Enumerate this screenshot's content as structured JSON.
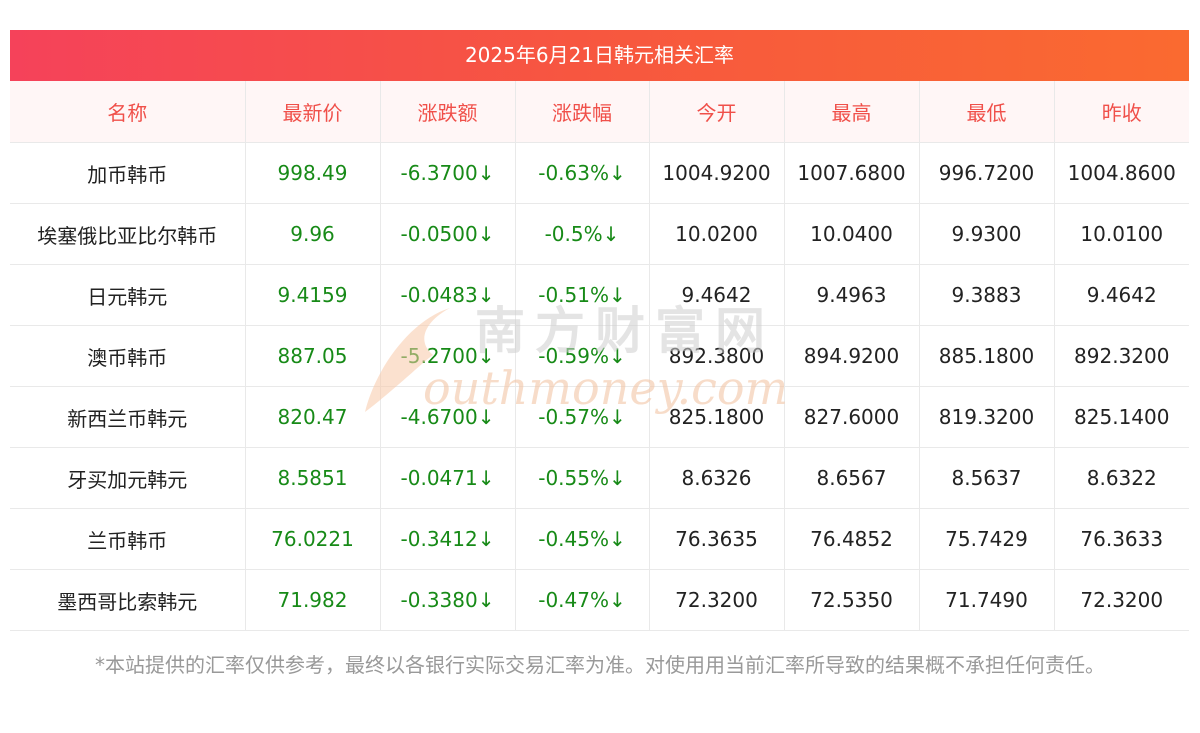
{
  "title": "2025年6月21日韩元相关汇率",
  "headers": [
    "名称",
    "最新价",
    "涨跌额",
    "涨跌幅",
    "今开",
    "最高",
    "最低",
    "昨收"
  ],
  "rows": [
    {
      "name": "加币韩币",
      "latest": "998.49",
      "change": "-6.3700↓",
      "pct": "-0.63%↓",
      "open": "1004.9200",
      "high": "1007.6800",
      "low": "996.7200",
      "prev": "1004.8600"
    },
    {
      "name": "埃塞俄比亚比尔韩币",
      "latest": "9.96",
      "change": "-0.0500↓",
      "pct": "-0.5%↓",
      "open": "10.0200",
      "high": "10.0400",
      "low": "9.9300",
      "prev": "10.0100"
    },
    {
      "name": "日元韩元",
      "latest": "9.4159",
      "change": "-0.0483↓",
      "pct": "-0.51%↓",
      "open": "9.4642",
      "high": "9.4963",
      "low": "9.3883",
      "prev": "9.4642"
    },
    {
      "name": "澳币韩币",
      "latest": "887.05",
      "change": "-5.2700↓",
      "pct": "-0.59%↓",
      "open": "892.3800",
      "high": "894.9200",
      "low": "885.1800",
      "prev": "892.3200"
    },
    {
      "name": "新西兰币韩元",
      "latest": "820.47",
      "change": "-4.6700↓",
      "pct": "-0.57%↓",
      "open": "825.1800",
      "high": "827.6000",
      "low": "819.3200",
      "prev": "825.1400"
    },
    {
      "name": "牙买加元韩元",
      "latest": "8.5851",
      "change": "-0.0471↓",
      "pct": "-0.55%↓",
      "open": "8.6326",
      "high": "8.6567",
      "low": "8.5637",
      "prev": "8.6322"
    },
    {
      "name": "兰币韩币",
      "latest": "76.0221",
      "change": "-0.3412↓",
      "pct": "-0.45%↓",
      "open": "76.3635",
      "high": "76.4852",
      "low": "75.7429",
      "prev": "76.3633"
    },
    {
      "name": "墨西哥比索韩元",
      "latest": "71.982",
      "change": "-0.3380↓",
      "pct": "-0.47%↓",
      "open": "72.3200",
      "high": "72.5350",
      "low": "71.7490",
      "prev": "72.3200"
    }
  ],
  "watermark": {
    "cn": "南方财富网",
    "en": "outhmoney.com"
  },
  "footnote": "*本站提供的汇率仅供参考，最终以各银行实际交易汇率为准。对使用用当前汇率所导致的结果概不承担任何责任。",
  "colors": {
    "header_text": "#f0504a",
    "change_text": "#178a17",
    "title_bg_start": "#f5425a",
    "title_bg_end": "#fa6a30"
  }
}
